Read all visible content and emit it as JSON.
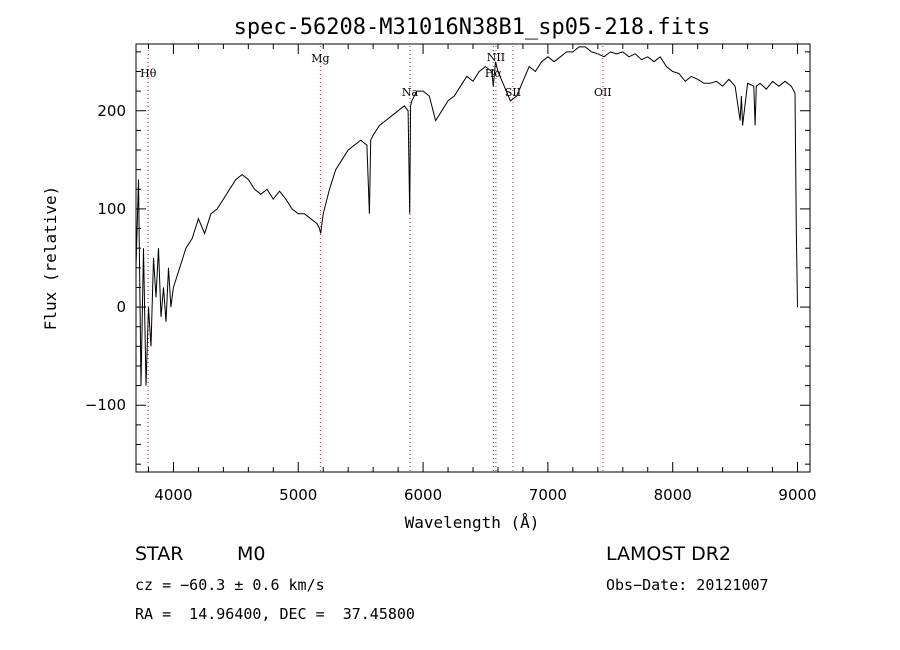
{
  "chart_data": {
    "type": "line",
    "title": "spec-56208-M31016N38B1_sp05-218.fits",
    "xlabel": "Wavelength (Å)",
    "ylabel": "Flux (relative)",
    "xlim": [
      3700,
      9100
    ],
    "ylim": [
      -168,
      268
    ],
    "x_ticks": [
      4000,
      5000,
      6000,
      7000,
      8000,
      9000
    ],
    "y_ticks": [
      -100,
      0,
      100,
      200
    ],
    "grid": false,
    "spectral_lines": [
      {
        "label": "Hθ",
        "x": 3798
      },
      {
        "label": "Mg",
        "x": 5177
      },
      {
        "label": "Na",
        "x": 5895
      },
      {
        "label": "NII",
        "x": 6584
      },
      {
        "label": "Hα",
        "x": 6563
      },
      {
        "label": "SII",
        "x": 6720
      },
      {
        "label": "OII",
        "x": 7440
      }
    ],
    "series": [
      {
        "x": [
          3700,
          3720,
          3740,
          3760,
          3780,
          3800,
          3820,
          3840,
          3860,
          3880,
          3900,
          3920,
          3940,
          3960,
          3980,
          4000,
          4050,
          4100,
          4150,
          4200,
          4250,
          4300,
          4350,
          4400,
          4450,
          4500,
          4550,
          4600,
          4650,
          4700,
          4750,
          4800,
          4850,
          4900,
          4950,
          5000,
          5050,
          5100,
          5150,
          5170,
          5180,
          5200,
          5250,
          5300,
          5350,
          5400,
          5450,
          5500,
          5550,
          5570,
          5580,
          5600,
          5650,
          5700,
          5750,
          5800,
          5850,
          5880,
          5893,
          5900,
          5910,
          5950,
          6000,
          6050,
          6100,
          6150,
          6200,
          6250,
          6300,
          6350,
          6400,
          6450,
          6500,
          6550,
          6563,
          6580,
          6600,
          6650,
          6700,
          6750,
          6800,
          6850,
          6900,
          6950,
          7000,
          7050,
          7100,
          7150,
          7200,
          7250,
          7300,
          7350,
          7400,
          7450,
          7500,
          7550,
          7600,
          7650,
          7700,
          7750,
          7800,
          7850,
          7900,
          7950,
          8000,
          8050,
          8100,
          8150,
          8200,
          8250,
          8300,
          8350,
          8400,
          8450,
          8500,
          8540,
          8550,
          8560,
          8600,
          8650,
          8660,
          8670,
          8700,
          8750,
          8800,
          8850,
          8900,
          8950,
          8980,
          8990,
          9000
        ],
        "y": [
          40,
          130,
          -80,
          60,
          -80,
          0,
          -40,
          50,
          10,
          60,
          -10,
          20,
          -15,
          40,
          0,
          20,
          40,
          60,
          70,
          90,
          75,
          95,
          100,
          110,
          120,
          130,
          135,
          130,
          120,
          115,
          120,
          110,
          118,
          110,
          100,
          95,
          95,
          90,
          85,
          80,
          75,
          95,
          120,
          140,
          150,
          160,
          165,
          170,
          165,
          95,
          170,
          175,
          185,
          190,
          195,
          200,
          205,
          200,
          95,
          205,
          210,
          220,
          220,
          215,
          190,
          200,
          210,
          215,
          225,
          235,
          230,
          240,
          245,
          240,
          225,
          250,
          240,
          225,
          210,
          215,
          230,
          245,
          240,
          250,
          255,
          250,
          255,
          260,
          260,
          265,
          265,
          260,
          258,
          255,
          260,
          258,
          260,
          255,
          258,
          252,
          255,
          250,
          255,
          245,
          240,
          238,
          230,
          235,
          232,
          228,
          228,
          230,
          225,
          232,
          225,
          190,
          215,
          185,
          228,
          225,
          185,
          225,
          228,
          222,
          230,
          225,
          230,
          225,
          218,
          80,
          0
        ]
      }
    ]
  },
  "info": {
    "class": "STAR",
    "subclass": "M0",
    "survey": "LAMOST DR2",
    "cz": "cz = −60.3 ± 0.6 km/s",
    "obs_date": "Obs−Date: 20121007",
    "radec": "RA =  14.96400, DEC =  37.45800"
  }
}
